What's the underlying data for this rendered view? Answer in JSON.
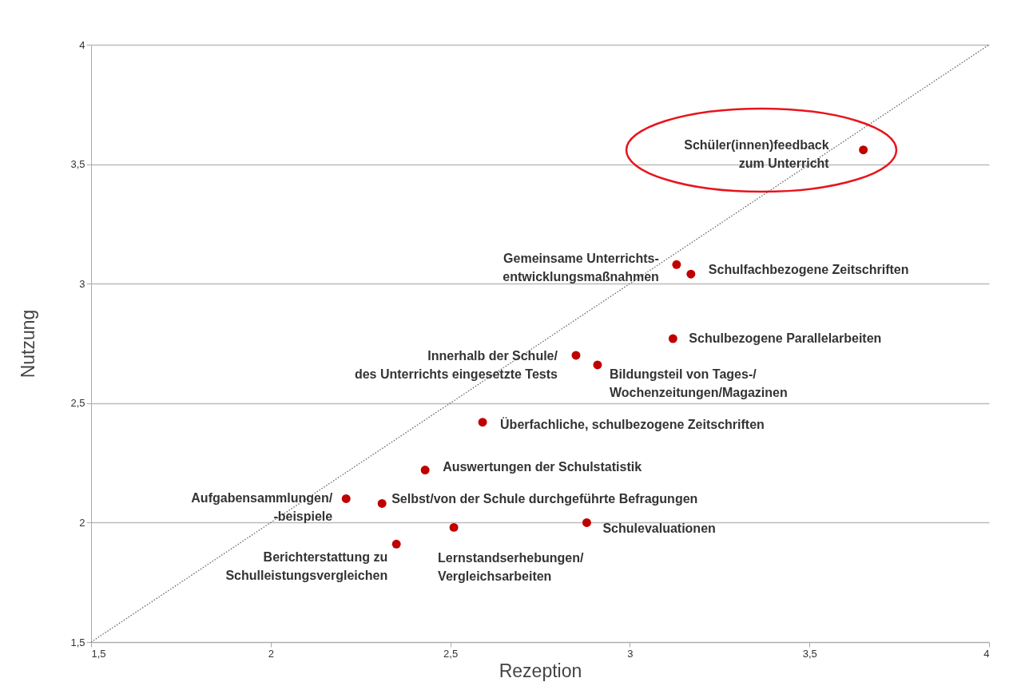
{
  "chart_data": {
    "type": "scatter",
    "xlabel": "Rezeption",
    "ylabel": "Nutzung",
    "xlim": [
      1.5,
      4
    ],
    "ylim": [
      1.5,
      4
    ],
    "xticks": [
      {
        "value": 1.5,
        "label": "1,5"
      },
      2,
      {
        "value": 2.5,
        "label": "2,5"
      },
      3,
      {
        "value": 3.5,
        "label": "3,5"
      },
      4
    ],
    "yticks": [
      {
        "value": 1.5,
        "label": "1,5"
      },
      2,
      {
        "value": 2.5,
        "label": "2,5"
      },
      3,
      {
        "value": 3.5,
        "label": "3,5"
      },
      4
    ],
    "grid": "y",
    "series": [
      {
        "type": "line",
        "color": "#666666",
        "line_style": "dotted",
        "x": [
          1.5,
          4
        ],
        "values": [
          1.5,
          4
        ]
      },
      {
        "marker": "circle",
        "color": "#c00000",
        "x": [
          3.65,
          3.13,
          3.17,
          3.12,
          2.85,
          2.91,
          2.59,
          2.43,
          2.21,
          2.31,
          2.88,
          2.51,
          2.35
        ],
        "values": [
          3.56,
          3.08,
          3.04,
          2.77,
          2.7,
          2.66,
          2.42,
          2.22,
          2.1,
          2.08,
          2.0,
          1.98,
          1.91
        ]
      }
    ],
    "annotations": [
      {
        "text": "Schüler(innen)feedback\nzum Unterricht",
        "x": 3.65,
        "y": 3.56
      },
      {
        "text": "Gemeinsame Unterrichts-\nentwicklungsmaßnahmen",
        "x": 3.13,
        "y": 3.08
      },
      {
        "text": "Schulfachbezogene  Zeitschriften",
        "x": 3.17,
        "y": 3.04
      },
      {
        "text": "Schulbezogene  Parallelarbeiten",
        "x": 3.12,
        "y": 2.77
      },
      {
        "text": "Innerhalb der Schule/\ndes Unterrichts eingesetzte Tests",
        "x": 2.85,
        "y": 2.7
      },
      {
        "text": "Bildungsteil von Tages-/\nWochenzeitungen/Magazinen",
        "x": 2.91,
        "y": 2.66
      },
      {
        "text": "Überfachliche, schulbezogene Zeitschriften",
        "x": 2.59,
        "y": 2.42
      },
      {
        "text": "Auswertungen der Schulstatistik",
        "x": 2.43,
        "y": 2.22
      },
      {
        "text": "Aufgabensammlungen/\n-beispiele",
        "x": 2.21,
        "y": 2.1
      },
      {
        "text": "Selbst/von der Schule durchgeführte Befragungen",
        "x": 2.31,
        "y": 2.08
      },
      {
        "text": "Schulevaluationen",
        "x": 2.88,
        "y": 2.0
      },
      {
        "text": "Lernstandserhebungen/\nVergleichsarbeiten",
        "x": 2.51,
        "y": 1.98
      },
      {
        "text": "Berichterstattung zu\nSchulleistungsvergleichen",
        "x": 2.35,
        "y": 1.91
      }
    ]
  }
}
